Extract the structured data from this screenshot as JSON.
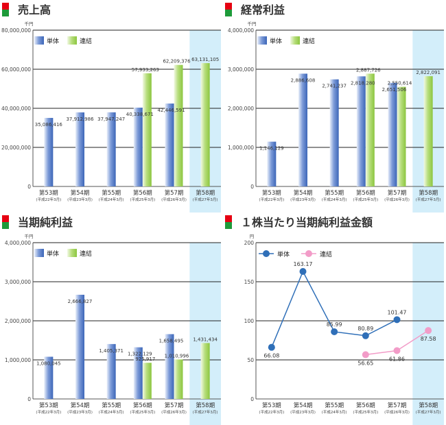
{
  "colors": {
    "bar_single": "#3c66b8",
    "bar_consolidated": "#8cc63f",
    "highlight": "#d3eefa",
    "line_single": "#2f6fb8",
    "line_consolidated": "#f29cc8",
    "title_marker_red": "#e60012",
    "title_marker_green": "#1e9a3a"
  },
  "legend": {
    "single": "単体",
    "consolidated": "連結"
  },
  "charts": [
    {
      "title": "売上高",
      "unit": "千円"
    },
    {
      "title": "経常利益",
      "unit": "千円"
    },
    {
      "title": "当期純利益",
      "unit": "千円"
    },
    {
      "title": "１株当たり当期純利益金額",
      "unit": "円"
    }
  ],
  "chart_data": [
    {
      "type": "bar",
      "title": "売上高",
      "unit": "千円",
      "categories": [
        "第53期",
        "第54期",
        "第55期",
        "第56期",
        "第57期",
        "第58期"
      ],
      "sublabels": [
        "(平成22年3月)",
        "(平成23年3月)",
        "(平成24年3月)",
        "(平成25年3月)",
        "(平成26年3月)",
        "(平成27年3月)"
      ],
      "ylim": [
        0,
        80000000
      ],
      "yticks": [
        0,
        20000000,
        40000000,
        60000000,
        80000000
      ],
      "ytick_labels": [
        "0",
        "20,000,000",
        "40,000,000",
        "60,000,000",
        "80,000,000"
      ],
      "series": [
        {
          "name": "単体",
          "values": [
            35086416,
            37912986,
            37947247,
            40338671,
            42446591,
            null
          ],
          "labels": [
            "35,086,416",
            "37,912,986",
            "37,947,247",
            "40,338,671",
            "42,446,591",
            ""
          ]
        },
        {
          "name": "連結",
          "values": [
            null,
            null,
            null,
            57933263,
            62209376,
            63131105
          ],
          "labels": [
            "",
            "",
            "",
            "57,933,263",
            "62,209,376",
            "63,131,105"
          ]
        }
      ]
    },
    {
      "type": "bar",
      "title": "経常利益",
      "unit": "千円",
      "categories": [
        "第53期",
        "第54期",
        "第55期",
        "第56期",
        "第57期",
        "第58期"
      ],
      "sublabels": [
        "(平成22年3月)",
        "(平成23年3月)",
        "(平成24年3月)",
        "(平成25年3月)",
        "(平成26年3月)",
        "(平成27年3月)"
      ],
      "ylim": [
        0,
        4000000
      ],
      "yticks": [
        0,
        1000000,
        2000000,
        3000000,
        4000000
      ],
      "ytick_labels": [
        "0",
        "1,000,000",
        "2,000,000",
        "3,000,000",
        "4,000,000"
      ],
      "series": [
        {
          "name": "単体",
          "values": [
            1146129,
            2886608,
            2741237,
            2818280,
            2651506,
            null
          ],
          "labels": [
            "1,146,129",
            "2,886,608",
            "2,741,237",
            "2,818,280",
            "2,651,506",
            ""
          ]
        },
        {
          "name": "連結",
          "values": [
            null,
            null,
            null,
            2887726,
            2550614,
            2822091
          ],
          "labels": [
            "",
            "",
            "",
            "2,887,726",
            "2,550,614",
            "2,822,091"
          ]
        }
      ]
    },
    {
      "type": "bar",
      "title": "当期純利益",
      "unit": "千円",
      "categories": [
        "第53期",
        "第54期",
        "第55期",
        "第56期",
        "第57期",
        "第58期"
      ],
      "sublabels": [
        "(平成22年3月)",
        "(平成23年3月)",
        "(平成24年3月)",
        "(平成25年3月)",
        "(平成26年3月)",
        "(平成27年3月)"
      ],
      "ylim": [
        0,
        4000000
      ],
      "yticks": [
        0,
        1000000,
        2000000,
        3000000,
        4000000
      ],
      "ytick_labels": [
        "0",
        "1,000,000",
        "2,000,000",
        "3,000,000",
        "4,000,000"
      ],
      "series": [
        {
          "name": "単体",
          "values": [
            1080045,
            2666827,
            1405371,
            1322129,
            1658495,
            null
          ],
          "labels": [
            "1,080,045",
            "2,666,827",
            "1,405,371",
            "1,322,129",
            "1,658,495",
            ""
          ]
        },
        {
          "name": "連結",
          "values": [
            null,
            null,
            null,
            925917,
            1010996,
            1431434
          ],
          "labels": [
            "",
            "",
            "",
            "925,917",
            "1,010,996",
            "1,431,434"
          ]
        }
      ]
    },
    {
      "type": "line",
      "title": "１株当たり当期純利益金額",
      "unit": "円",
      "categories": [
        "第53期",
        "第54期",
        "第55期",
        "第56期",
        "第57期",
        "第58期"
      ],
      "sublabels": [
        "(平成22年3月)",
        "(平成23年3月)",
        "(平成24年3月)",
        "(平成25年3月)",
        "(平成26年3月)",
        "(平成27年3月)"
      ],
      "ylim": [
        0,
        200
      ],
      "yticks": [
        0,
        50,
        100,
        150,
        200
      ],
      "ytick_labels": [
        "0",
        "50",
        "100",
        "150",
        "200"
      ],
      "series": [
        {
          "name": "単体",
          "values": [
            66.08,
            163.17,
            85.99,
            80.89,
            101.47,
            null
          ],
          "labels": [
            "66.08",
            "163.17",
            "85.99",
            "80.89",
            "101.47",
            ""
          ]
        },
        {
          "name": "連結",
          "values": [
            null,
            null,
            null,
            56.65,
            61.86,
            87.58
          ],
          "labels": [
            "",
            "",
            "",
            "56.65",
            "61.86",
            "87.58"
          ]
        }
      ]
    }
  ]
}
